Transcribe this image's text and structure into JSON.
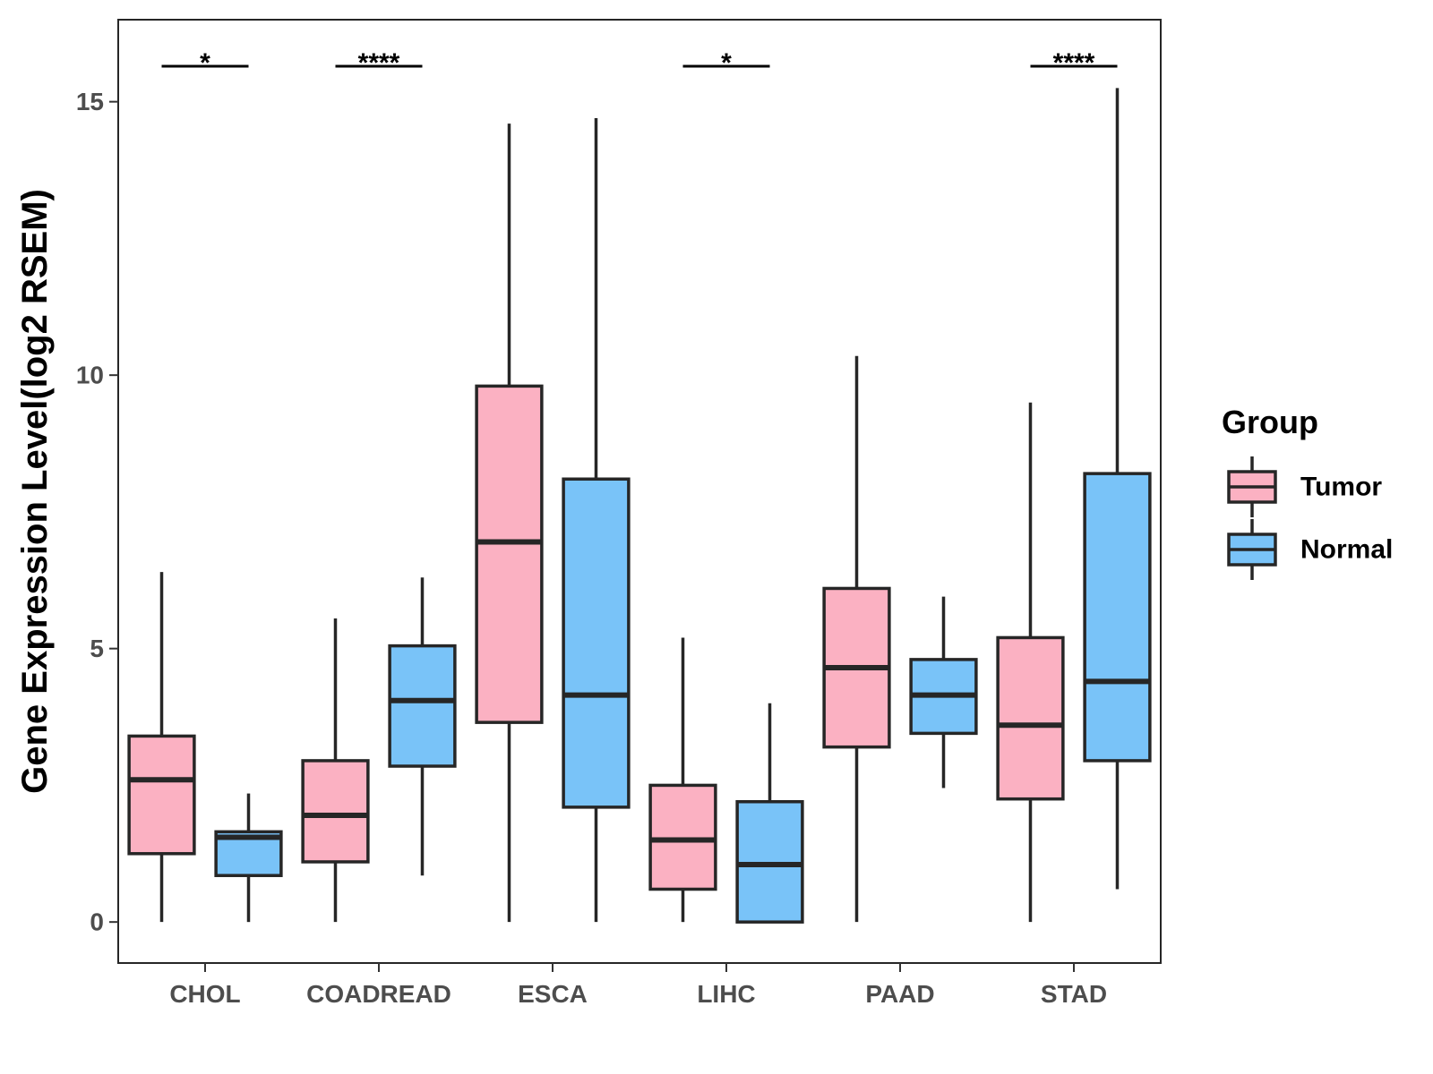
{
  "chart_data": {
    "type": "boxplot",
    "title": "",
    "xlabel": "",
    "ylabel": "Gene Expression Level(log2 RSEM)",
    "ylim": [
      -0.75,
      16.5
    ],
    "yticks": [
      0,
      5,
      10,
      15
    ],
    "categories": [
      "CHOL",
      "COADREAD",
      "ESCA",
      "LIHC",
      "PAAD",
      "STAD"
    ],
    "legend": {
      "title": "Group",
      "position": "right"
    },
    "series": [
      {
        "name": "Tumor",
        "color": "#FBB1C2",
        "boxes": [
          {
            "min": 0.0,
            "q1": 1.25,
            "median": 2.6,
            "q3": 3.4,
            "max": 6.4
          },
          {
            "min": 0.0,
            "q1": 1.1,
            "median": 1.95,
            "q3": 2.95,
            "max": 5.55
          },
          {
            "min": 0.0,
            "q1": 3.65,
            "median": 6.95,
            "q3": 9.8,
            "max": 14.6
          },
          {
            "min": 0.0,
            "q1": 0.6,
            "median": 1.5,
            "q3": 2.5,
            "max": 5.2
          },
          {
            "min": 0.0,
            "q1": 3.2,
            "median": 4.65,
            "q3": 6.1,
            "max": 10.35
          },
          {
            "min": 0.0,
            "q1": 2.25,
            "median": 3.6,
            "q3": 5.2,
            "max": 9.5
          }
        ]
      },
      {
        "name": "Normal",
        "color": "#79C3F8",
        "boxes": [
          {
            "min": 0.0,
            "q1": 0.85,
            "median": 1.55,
            "q3": 1.65,
            "max": 2.35
          },
          {
            "min": 0.85,
            "q1": 2.85,
            "median": 4.05,
            "q3": 5.05,
            "max": 6.3
          },
          {
            "min": 0.0,
            "q1": 2.1,
            "median": 4.15,
            "q3": 8.1,
            "max": 14.7
          },
          {
            "min": 0.0,
            "q1": 0.0,
            "median": 1.05,
            "q3": 2.2,
            "max": 4.0
          },
          {
            "min": 2.45,
            "q1": 3.45,
            "median": 4.15,
            "q3": 4.8,
            "max": 5.95
          },
          {
            "min": 0.6,
            "q1": 2.95,
            "median": 4.4,
            "q3": 8.2,
            "max": 15.25
          }
        ]
      }
    ],
    "significance": [
      {
        "category": "CHOL",
        "label": "*"
      },
      {
        "category": "COADREAD",
        "label": "****"
      },
      {
        "category": "LIHC",
        "label": "*"
      },
      {
        "category": "STAD",
        "label": "****"
      }
    ]
  }
}
